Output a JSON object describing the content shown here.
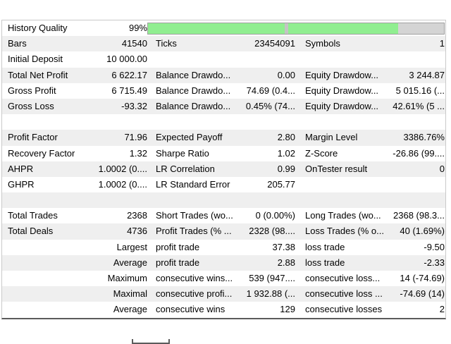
{
  "app": {
    "name": "strategy-tester-backtest-report"
  },
  "colors": {
    "row_alt": "#efefef",
    "bar_green": "#90ee90",
    "bar_divider": "#c4c4c4",
    "bar_gray": "#d4d4d4",
    "border_light": "#c9c9c9",
    "border_dark": "#5b5b5b"
  },
  "progress": {
    "label": "History Quality",
    "value": "99%",
    "segments": [
      {
        "name": "quality-segment-1",
        "color": "#90ee90",
        "width": 46.1
      },
      {
        "name": "quality-divider",
        "color": "#c4c4c4",
        "width": 1.2
      },
      {
        "name": "quality-segment-2",
        "color": "#90ee90",
        "width": 37.2
      },
      {
        "name": "quality-remainder",
        "color": "#d4d4d4",
        "width": 15.5
      }
    ]
  },
  "rows": [
    {
      "l1": "History Quality",
      "v1": "99%",
      "l2": "",
      "v2": "",
      "l3": "",
      "v3": ""
    },
    {
      "l1": "Bars",
      "v1": "41540",
      "l2": "Ticks",
      "v2": "23454091",
      "l3": "Symbols",
      "v3": "1"
    },
    {
      "l1": "Initial Deposit",
      "v1": "10 000.00",
      "l2": "",
      "v2": "",
      "l3": "",
      "v3": ""
    },
    {
      "l1": "Total Net Profit",
      "v1": "6 622.17",
      "l2": "Balance Drawdo...",
      "v2": "0.00",
      "l3": "Equity Drawdow...",
      "v3": "3 244.87"
    },
    {
      "l1": "Gross Profit",
      "v1": "6 715.49",
      "l2": "Balance Drawdo...",
      "v2": "74.69 (0.4...",
      "l3": "Equity Drawdow...",
      "v3": "5 015.16 (..."
    },
    {
      "l1": "Gross Loss",
      "v1": "-93.32",
      "l2": "Balance Drawdo...",
      "v2": "0.45% (74...",
      "l3": "Equity Drawdow...",
      "v3": "42.61% (5 ..."
    },
    {
      "l1": "",
      "v1": "",
      "l2": "",
      "v2": "",
      "l3": "",
      "v3": ""
    },
    {
      "l1": "Profit Factor",
      "v1": "71.96",
      "l2": "Expected Payoff",
      "v2": "2.80",
      "l3": "Margin Level",
      "v3": "3386.76%"
    },
    {
      "l1": "Recovery Factor",
      "v1": "1.32",
      "l2": "Sharpe Ratio",
      "v2": "1.02",
      "l3": "Z-Score",
      "v3": "-26.86 (99...."
    },
    {
      "l1": "AHPR",
      "v1": "1.0002 (0....",
      "l2": "LR Correlation",
      "v2": "0.99",
      "l3": "OnTester result",
      "v3": "0"
    },
    {
      "l1": "GHPR",
      "v1": "1.0002 (0....",
      "l2": "LR Standard Error",
      "v2": "205.77",
      "l3": "",
      "v3": ""
    },
    {
      "l1": "",
      "v1": "",
      "l2": "",
      "v2": "",
      "l3": "",
      "v3": ""
    },
    {
      "l1": "Total Trades",
      "v1": "2368",
      "l2": "Short Trades (wo...",
      "v2": "0 (0.00%)",
      "l3": "Long Trades (wo...",
      "v3": "2368 (98.3..."
    },
    {
      "l1": "Total Deals",
      "v1": "4736",
      "l2": "Profit Trades (% ...",
      "v2": "2328 (98....",
      "l3": "Loss Trades (% o...",
      "v3": "40 (1.69%)"
    },
    {
      "l1": "",
      "v1": "Largest",
      "l2": "profit trade",
      "v2": "37.38",
      "l3": "loss trade",
      "v3": "-9.50"
    },
    {
      "l1": "",
      "v1": "Average",
      "l2": "profit trade",
      "v2": "2.88",
      "l3": "loss trade",
      "v3": "-2.33"
    },
    {
      "l1": "",
      "v1": "Maximum",
      "l2": "consecutive wins...",
      "v2": "539 (947....",
      "l3": "consecutive loss...",
      "v3": "14 (-74.69)"
    },
    {
      "l1": "",
      "v1": "Maximal",
      "l2": "consecutive profi...",
      "v2": "1 932.88 (...",
      "l3": "consecutive loss ...",
      "v3": "-74.69 (14)"
    },
    {
      "l1": "",
      "v1": "Average",
      "l2": "consecutive wins",
      "v2": "129",
      "l3": "consecutive losses",
      "v3": "2"
    }
  ]
}
